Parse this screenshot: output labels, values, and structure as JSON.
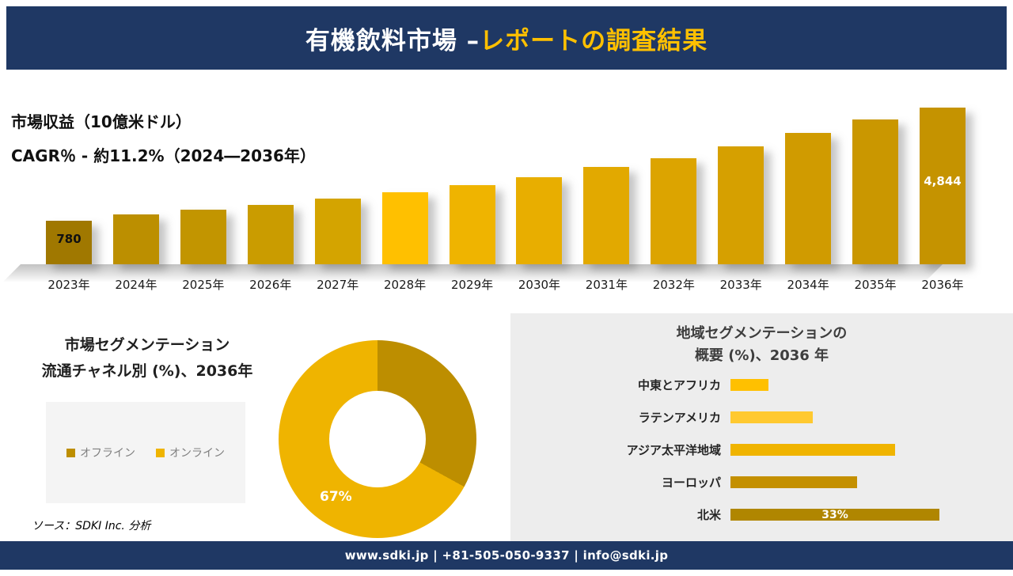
{
  "header": {
    "title_white": "有機飲料市場 –",
    "title_yellow": "レポートの調査結果"
  },
  "revenue": {
    "metric_label": "市場収益（10億米ドル）",
    "cagr_label": "CAGR％ - 約11.2%（2024―2036年）"
  },
  "chart_data": [
    {
      "type": "bar",
      "title": "市場収益（10億米ドル）",
      "subtitle": "CAGR％ - 約11.2%（2024―2036年）",
      "categories": [
        "2023年",
        "2024年",
        "2025年",
        "2026年",
        "2027年",
        "2028年",
        "2029年",
        "2030年",
        "2031年",
        "2032年",
        "2033年",
        "2034年",
        "2035年",
        "2036年"
      ],
      "values": [
        780,
        1010,
        1180,
        1350,
        1580,
        1800,
        2060,
        2340,
        2710,
        3030,
        3450,
        3930,
        4420,
        4844
      ],
      "value_labels": [
        {
          "index": 0,
          "text": "780",
          "style": "dark",
          "offset": 14
        },
        {
          "index": 13,
          "text": "4,844",
          "style": "light",
          "offset": 84
        }
      ],
      "colors": [
        "#A07800",
        "#BC8F00",
        "#C29500",
        "#CA9C00",
        "#D4A400",
        "#FFC000",
        "#EFB400",
        "#E8AE00",
        "#E2A900",
        "#DCA400",
        "#D6A000",
        "#D09B00",
        "#CA9700",
        "#C59300"
      ],
      "ylim": [
        0,
        5000
      ],
      "grid": false,
      "legend_position": "none"
    },
    {
      "type": "pie",
      "donut": true,
      "title_line1": "市場セグメンテーション",
      "title_line2": "流通チャネル別 (%)、2036年",
      "slices": [
        {
          "label": "オフライン",
          "value": 33,
          "color": "#BD8E00"
        },
        {
          "label": "オンライン",
          "value": 67,
          "color": "#EFB400"
        }
      ],
      "shown_label": "67%",
      "legend_position": "left"
    },
    {
      "type": "bar",
      "orientation": "horizontal",
      "title_line1": "地域セグメンテーションの",
      "title_line2": "概要 (%)、2036 年",
      "categories": [
        "中東とアフリカ",
        "ラテンアメリカ",
        "アジア太平洋地域",
        "ヨーロッパ",
        "北米"
      ],
      "values": [
        6,
        13,
        26,
        20,
        33
      ],
      "bar_labels": [
        "",
        "",
        "",
        "",
        "33%"
      ],
      "colors": [
        "#FFC000",
        "#FFC930",
        "#F0B400",
        "#C49000",
        "#B08600"
      ],
      "xlim": [
        0,
        40
      ],
      "grid": false
    }
  ],
  "source": "ソース：SDKI Inc. 分析",
  "footer": {
    "text": "www.sdki.jp | +81-505-050-9337 | info@sdki.jp"
  }
}
